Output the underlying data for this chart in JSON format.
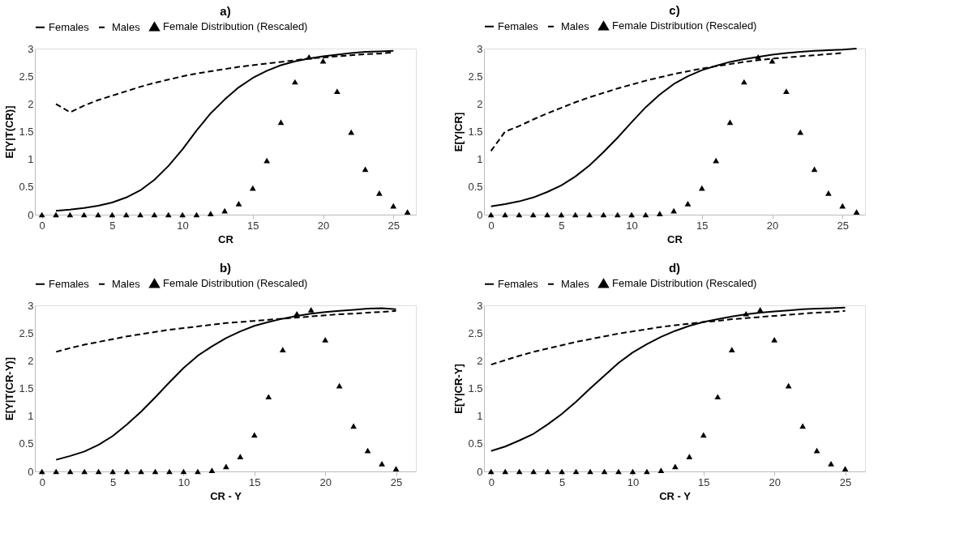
{
  "chart_data": [
    {
      "type": "line",
      "title": "a)",
      "xlabel": "CR",
      "ylabel": "E[Y|T(CR)]",
      "xlim": [
        -0.5,
        26.6
      ],
      "ylim": [
        0,
        3
      ],
      "xticks": [
        0,
        5,
        10,
        15,
        20,
        25
      ],
      "yticks": [
        0,
        0.5,
        1,
        1.5,
        2,
        2.5,
        3
      ],
      "legend": "top",
      "grid": false,
      "series": [
        {
          "name": "Females",
          "type": "line",
          "line_style": "solid",
          "color": "#000000",
          "x": [
            1,
            2,
            3,
            4,
            5,
            6,
            7,
            8,
            9,
            10,
            11,
            12,
            13,
            14,
            15,
            16,
            17,
            18,
            19,
            20,
            21,
            22,
            23,
            24,
            25
          ],
          "values": [
            0.07,
            0.09,
            0.12,
            0.16,
            0.22,
            0.31,
            0.44,
            0.63,
            0.88,
            1.18,
            1.52,
            1.83,
            2.08,
            2.3,
            2.47,
            2.6,
            2.7,
            2.77,
            2.82,
            2.86,
            2.89,
            2.92,
            2.94,
            2.95,
            2.96
          ]
        },
        {
          "name": "Males",
          "type": "line",
          "line_style": "dashed",
          "color": "#000000",
          "x": [
            1,
            2,
            3,
            4,
            5,
            6,
            7,
            8,
            9,
            10,
            11,
            12,
            13,
            14,
            15,
            16,
            17,
            18,
            19,
            20,
            21,
            22,
            23,
            24,
            25
          ],
          "values": [
            2.0,
            1.85,
            1.97,
            2.07,
            2.15,
            2.23,
            2.31,
            2.38,
            2.44,
            2.5,
            2.55,
            2.59,
            2.63,
            2.67,
            2.7,
            2.73,
            2.76,
            2.79,
            2.82,
            2.84,
            2.86,
            2.88,
            2.9,
            2.91,
            2.93
          ]
        },
        {
          "name": "Female Distribution  (Rescaled)",
          "type": "scatter",
          "marker": "triangle",
          "color": "#000000",
          "x": [
            0,
            1,
            2,
            3,
            4,
            5,
            6,
            7,
            8,
            9,
            10,
            11,
            12,
            13,
            14,
            15,
            16,
            17,
            18,
            19,
            20,
            21,
            22,
            23,
            24,
            25,
            26
          ],
          "values": [
            0,
            0,
            0,
            0,
            0,
            0,
            0,
            0,
            0,
            0,
            0,
            0,
            0.02,
            0.07,
            0.2,
            0.48,
            0.98,
            1.67,
            2.4,
            2.85,
            2.78,
            2.23,
            1.49,
            0.82,
            0.39,
            0.16,
            0.05
          ]
        }
      ]
    },
    {
      "type": "line",
      "title": "c)",
      "xlabel": "CR",
      "ylabel": "E[Y|CR]",
      "xlim": [
        -0.5,
        26.6
      ],
      "ylim": [
        0,
        3
      ],
      "xticks": [
        0,
        5,
        10,
        15,
        20,
        25
      ],
      "yticks": [
        0,
        0.5,
        1,
        1.5,
        2,
        2.5,
        3
      ],
      "legend": "top",
      "grid": false,
      "series": [
        {
          "name": "Females",
          "type": "line",
          "line_style": "solid",
          "color": "#000000",
          "x": [
            0,
            1,
            2,
            3,
            4,
            5,
            6,
            7,
            8,
            9,
            10,
            11,
            12,
            13,
            14,
            15,
            16,
            17,
            18,
            19,
            20,
            21,
            22,
            23,
            24,
            25,
            26
          ],
          "values": [
            0.15,
            0.19,
            0.24,
            0.31,
            0.41,
            0.53,
            0.69,
            0.89,
            1.13,
            1.39,
            1.67,
            1.94,
            2.17,
            2.36,
            2.5,
            2.61,
            2.69,
            2.76,
            2.81,
            2.85,
            2.89,
            2.92,
            2.94,
            2.96,
            2.97,
            2.98,
            3.0
          ]
        },
        {
          "name": "Males",
          "type": "line",
          "line_style": "dashed",
          "color": "#000000",
          "x": [
            0,
            1,
            2,
            3,
            4,
            5,
            6,
            7,
            8,
            9,
            10,
            11,
            12,
            13,
            14,
            15,
            16,
            17,
            18,
            19,
            20,
            21,
            22,
            23,
            24,
            25
          ],
          "values": [
            1.15,
            1.5,
            1.6,
            1.72,
            1.83,
            1.93,
            2.03,
            2.12,
            2.2,
            2.28,
            2.35,
            2.42,
            2.48,
            2.54,
            2.59,
            2.64,
            2.68,
            2.72,
            2.76,
            2.79,
            2.82,
            2.84,
            2.86,
            2.88,
            2.9,
            2.92
          ]
        },
        {
          "name": "Female Distribution  (Rescaled)",
          "type": "scatter",
          "marker": "triangle",
          "color": "#000000",
          "x": [
            0,
            1,
            2,
            3,
            4,
            5,
            6,
            7,
            8,
            9,
            10,
            11,
            12,
            13,
            14,
            15,
            16,
            17,
            18,
            19,
            20,
            21,
            22,
            23,
            24,
            25,
            26
          ],
          "values": [
            0,
            0,
            0,
            0,
            0,
            0,
            0,
            0,
            0,
            0,
            0,
            0,
            0.02,
            0.07,
            0.2,
            0.48,
            0.98,
            1.67,
            2.4,
            2.85,
            2.78,
            2.23,
            1.49,
            0.82,
            0.39,
            0.16,
            0.05
          ]
        }
      ]
    },
    {
      "type": "line",
      "title": "b)",
      "xlabel": "CR - Y",
      "ylabel": "E[Y|T(CR-Y)]",
      "xlim": [
        -0.5,
        26.4
      ],
      "ylim": [
        0,
        3
      ],
      "xticks": [
        0,
        5,
        10,
        15,
        20,
        25
      ],
      "yticks": [
        0,
        0.5,
        1,
        1.5,
        2,
        2.5,
        3
      ],
      "legend": "top",
      "grid": false,
      "series": [
        {
          "name": "Females",
          "type": "line",
          "line_style": "solid",
          "color": "#000000",
          "x": [
            1,
            2,
            3,
            4,
            5,
            6,
            7,
            8,
            9,
            10,
            11,
            12,
            13,
            14,
            15,
            16,
            17,
            18,
            19,
            20,
            21,
            22,
            23,
            24,
            25
          ],
          "values": [
            0.21,
            0.28,
            0.36,
            0.48,
            0.64,
            0.85,
            1.08,
            1.34,
            1.61,
            1.87,
            2.09,
            2.26,
            2.41,
            2.53,
            2.63,
            2.7,
            2.76,
            2.81,
            2.85,
            2.88,
            2.9,
            2.92,
            2.94,
            2.95,
            2.93
          ]
        },
        {
          "name": "Males",
          "type": "line",
          "line_style": "dashed",
          "color": "#000000",
          "x": [
            1,
            2,
            3,
            4,
            5,
            6,
            7,
            8,
            9,
            10,
            11,
            12,
            13,
            14,
            15,
            16,
            17,
            18,
            19,
            20,
            21,
            22,
            23,
            24,
            25
          ],
          "values": [
            2.16,
            2.23,
            2.29,
            2.34,
            2.39,
            2.44,
            2.48,
            2.52,
            2.56,
            2.59,
            2.62,
            2.65,
            2.68,
            2.7,
            2.72,
            2.74,
            2.76,
            2.78,
            2.8,
            2.82,
            2.84,
            2.85,
            2.87,
            2.88,
            2.9
          ]
        },
        {
          "name": "Female Distribution  (Rescaled)",
          "type": "scatter",
          "marker": "triangle",
          "color": "#000000",
          "x": [
            0,
            1,
            2,
            3,
            4,
            5,
            6,
            7,
            8,
            9,
            10,
            11,
            12,
            13,
            14,
            15,
            16,
            17,
            18,
            19,
            20,
            21,
            22,
            23,
            24,
            25
          ],
          "values": [
            0,
            0,
            0,
            0,
            0,
            0,
            0,
            0,
            0,
            0,
            0,
            0,
            0.02,
            0.09,
            0.27,
            0.66,
            1.35,
            2.2,
            2.85,
            2.92,
            2.38,
            1.55,
            0.82,
            0.38,
            0.14,
            0.05
          ]
        }
      ]
    },
    {
      "type": "line",
      "title": "d)",
      "xlabel": "CR - Y",
      "ylabel": "E[Y|CR-Y]",
      "xlim": [
        -0.5,
        26.4
      ],
      "ylim": [
        0,
        3
      ],
      "xticks": [
        0,
        5,
        10,
        15,
        20,
        25
      ],
      "yticks": [
        0,
        0.5,
        1,
        1.5,
        2,
        2.5,
        3
      ],
      "legend": "top",
      "grid": false,
      "series": [
        {
          "name": "Females",
          "type": "line",
          "line_style": "solid",
          "color": "#000000",
          "x": [
            0,
            1,
            2,
            3,
            4,
            5,
            6,
            7,
            8,
            9,
            10,
            11,
            12,
            13,
            14,
            15,
            16,
            17,
            18,
            19,
            20,
            21,
            22,
            23,
            24,
            25
          ],
          "values": [
            0.37,
            0.45,
            0.56,
            0.68,
            0.85,
            1.04,
            1.26,
            1.5,
            1.73,
            1.96,
            2.15,
            2.3,
            2.43,
            2.54,
            2.63,
            2.7,
            2.75,
            2.8,
            2.84,
            2.87,
            2.89,
            2.91,
            2.93,
            2.94,
            2.95,
            2.96
          ]
        },
        {
          "name": "Males",
          "type": "line",
          "line_style": "dashed",
          "color": "#000000",
          "x": [
            0,
            1,
            2,
            3,
            4,
            5,
            6,
            7,
            8,
            9,
            10,
            11,
            12,
            13,
            14,
            15,
            16,
            17,
            18,
            19,
            20,
            21,
            22,
            23,
            24,
            25
          ],
          "values": [
            1.93,
            2.01,
            2.09,
            2.16,
            2.22,
            2.28,
            2.34,
            2.39,
            2.44,
            2.49,
            2.53,
            2.57,
            2.61,
            2.64,
            2.67,
            2.7,
            2.72,
            2.75,
            2.77,
            2.79,
            2.81,
            2.83,
            2.85,
            2.87,
            2.88,
            2.9
          ]
        },
        {
          "name": "Female Distribution  (Rescaled)",
          "type": "scatter",
          "marker": "triangle",
          "color": "#000000",
          "x": [
            0,
            1,
            2,
            3,
            4,
            5,
            6,
            7,
            8,
            9,
            10,
            11,
            12,
            13,
            14,
            15,
            16,
            17,
            18,
            19,
            20,
            21,
            22,
            23,
            24,
            25
          ],
          "values": [
            0,
            0,
            0,
            0,
            0,
            0,
            0,
            0,
            0,
            0,
            0,
            0,
            0.02,
            0.09,
            0.27,
            0.66,
            1.35,
            2.2,
            2.85,
            2.92,
            2.38,
            1.55,
            0.82,
            0.38,
            0.14,
            0.05
          ]
        }
      ]
    }
  ]
}
